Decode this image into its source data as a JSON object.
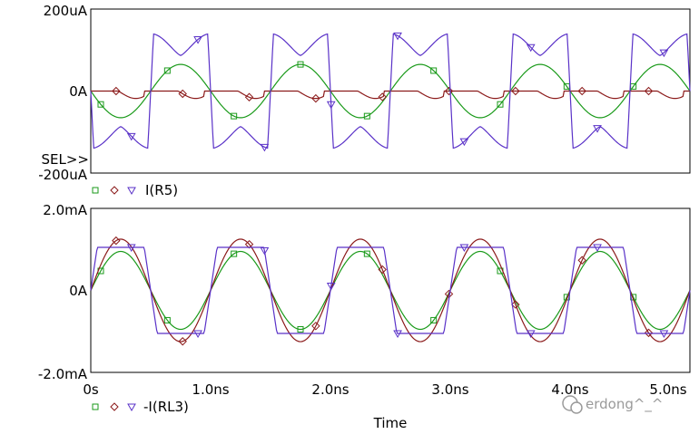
{
  "watermark": "erdong^_^",
  "sel_label": "SEL>>",
  "xlabel": "Time",
  "x_ticks": [
    "0s",
    "1.0ns",
    "2.0ns",
    "3.0ns",
    "4.0ns",
    "5.0ns"
  ],
  "colors": {
    "green": "#1a9a1a",
    "brown": "#8b1a1a",
    "purple": "#5a32c8",
    "axis": "#000000"
  },
  "chart_data": [
    {
      "type": "line",
      "ylabel": "",
      "y_ticks": [
        "200uA",
        "0A",
        "-200uA"
      ],
      "ylim": [
        -200,
        200
      ],
      "y_unit": "uA",
      "xlim": [
        0,
        5.0
      ],
      "x_unit": "ns",
      "legend": "I(R5)",
      "series": [
        {
          "color": "green",
          "shape": "sine",
          "amplitude": 65,
          "phase": 0.5,
          "period": 1.0
        },
        {
          "color": "brown",
          "shape": "dips",
          "amplitude": 20,
          "phase": 0.0,
          "period": 0.5
        },
        {
          "color": "purple",
          "shape": "clipped",
          "amplitude": 140,
          "phase": 0.0,
          "period": 1.0
        }
      ]
    },
    {
      "type": "line",
      "ylabel": "",
      "y_ticks": [
        "2.0mA",
        "0A",
        "-2.0mA"
      ],
      "ylim": [
        -2.0,
        2.0
      ],
      "y_unit": "mA",
      "xlim": [
        0,
        5.0
      ],
      "x_unit": "ns",
      "legend": "-I(RL3)",
      "series": [
        {
          "color": "green",
          "shape": "sine",
          "amplitude": 0.95,
          "phase": 0.0,
          "period": 1.0
        },
        {
          "color": "brown",
          "shape": "sine",
          "amplitude": 1.25,
          "phase": 0.0,
          "period": 1.0
        },
        {
          "color": "purple",
          "shape": "square",
          "amplitude": 1.05,
          "phase": 0.0,
          "period": 1.0
        }
      ]
    }
  ]
}
